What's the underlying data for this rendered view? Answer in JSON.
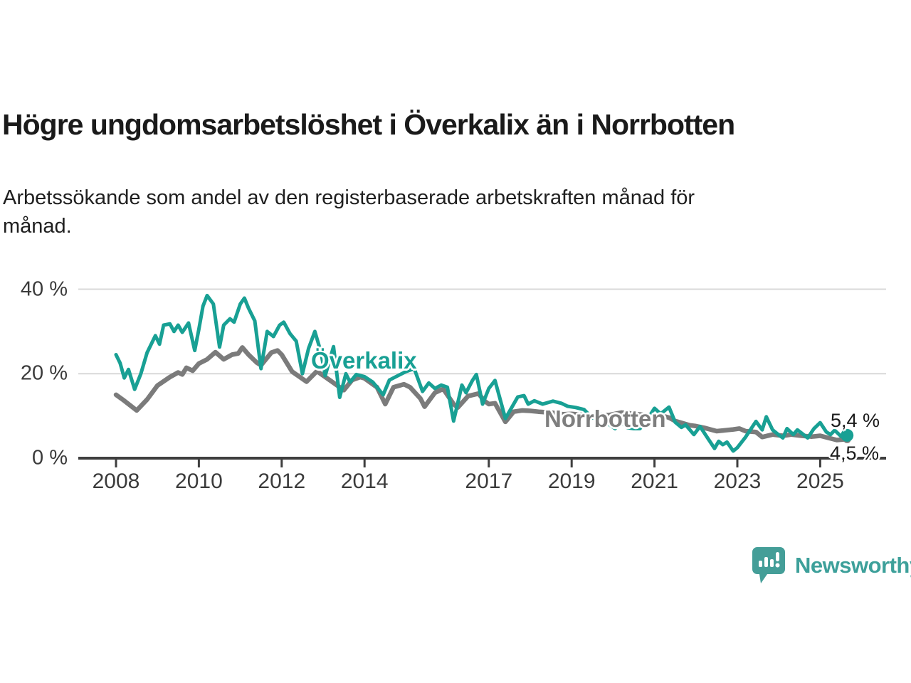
{
  "header": {
    "title": "Högre ungdomsarbetslöshet i Överkalix än i Norrbotten",
    "subtitle": "Arbetssökande som andel av den registerbaserade arbetskraften månad för månad."
  },
  "chart_data": {
    "type": "line",
    "unit": "%",
    "grid": "horizontal-only",
    "ylim": [
      0,
      42
    ],
    "xlim": [
      2007.1,
      2026.6
    ],
    "y_ticks": [
      {
        "value": 40,
        "label": "40 %"
      },
      {
        "value": 20,
        "label": "20 %"
      },
      {
        "value": 0,
        "label": "0 %"
      }
    ],
    "x_ticks": [
      {
        "value": 2008,
        "label": "2008"
      },
      {
        "value": 2010,
        "label": "2010"
      },
      {
        "value": 2012,
        "label": "2012"
      },
      {
        "value": 2014,
        "label": "2014"
      },
      {
        "value": 2017,
        "label": "2017"
      },
      {
        "value": 2019,
        "label": "2019"
      },
      {
        "value": 2021,
        "label": "2021"
      },
      {
        "value": 2023,
        "label": "2023"
      },
      {
        "value": 2025,
        "label": "2025"
      }
    ],
    "series": [
      {
        "name": "Överkalix",
        "color": "#18a094",
        "end_label": "5,4 %",
        "end_value": 5.4,
        "points": [
          [
            2008.0,
            24.5
          ],
          [
            2008.1,
            22.5
          ],
          [
            2008.2,
            19.0
          ],
          [
            2008.3,
            21.0
          ],
          [
            2008.45,
            16.3
          ],
          [
            2008.6,
            20.0
          ],
          [
            2008.75,
            25.0
          ],
          [
            2008.95,
            29.0
          ],
          [
            2009.05,
            27.0
          ],
          [
            2009.15,
            31.5
          ],
          [
            2009.3,
            31.8
          ],
          [
            2009.4,
            30.0
          ],
          [
            2009.5,
            31.5
          ],
          [
            2009.6,
            29.8
          ],
          [
            2009.75,
            32.0
          ],
          [
            2009.9,
            25.5
          ],
          [
            2010.0,
            30.5
          ],
          [
            2010.1,
            36.0
          ],
          [
            2010.2,
            38.5
          ],
          [
            2010.35,
            36.5
          ],
          [
            2010.5,
            26.3
          ],
          [
            2010.6,
            31.5
          ],
          [
            2010.75,
            33.0
          ],
          [
            2010.85,
            32.2
          ],
          [
            2011.0,
            36.5
          ],
          [
            2011.1,
            37.9
          ],
          [
            2011.2,
            35.5
          ],
          [
            2011.35,
            32.5
          ],
          [
            2011.5,
            21.2
          ],
          [
            2011.65,
            30.0
          ],
          [
            2011.8,
            28.8
          ],
          [
            2011.95,
            31.5
          ],
          [
            2012.05,
            32.2
          ],
          [
            2012.2,
            29.5
          ],
          [
            2012.35,
            27.7
          ],
          [
            2012.5,
            20.0
          ],
          [
            2012.65,
            26.0
          ],
          [
            2012.8,
            30.0
          ],
          [
            2012.95,
            25.0
          ],
          [
            2013.05,
            19.5
          ],
          [
            2013.25,
            26.4
          ],
          [
            2013.4,
            14.4
          ],
          [
            2013.55,
            20.0
          ],
          [
            2013.65,
            18.0
          ],
          [
            2013.8,
            19.8
          ],
          [
            2014.0,
            19.3
          ],
          [
            2014.2,
            18.0
          ],
          [
            2014.45,
            15.0
          ],
          [
            2014.6,
            18.5
          ],
          [
            2014.8,
            19.5
          ],
          [
            2015.0,
            20.5
          ],
          [
            2015.2,
            21.2
          ],
          [
            2015.4,
            15.8
          ],
          [
            2015.55,
            17.8
          ],
          [
            2015.7,
            16.5
          ],
          [
            2015.85,
            17.3
          ],
          [
            2016.0,
            16.8
          ],
          [
            2016.15,
            8.8
          ],
          [
            2016.35,
            17.3
          ],
          [
            2016.45,
            15.5
          ],
          [
            2016.6,
            18.3
          ],
          [
            2016.7,
            19.8
          ],
          [
            2016.85,
            12.8
          ],
          [
            2017.0,
            16.5
          ],
          [
            2017.15,
            18.4
          ],
          [
            2017.4,
            9.4
          ],
          [
            2017.7,
            14.5
          ],
          [
            2017.85,
            14.8
          ],
          [
            2017.95,
            12.8
          ],
          [
            2018.1,
            13.6
          ],
          [
            2018.3,
            12.8
          ],
          [
            2018.55,
            13.5
          ],
          [
            2018.75,
            13.0
          ],
          [
            2018.9,
            12.3
          ],
          [
            2019.1,
            12.0
          ],
          [
            2019.3,
            11.5
          ],
          [
            2019.5,
            9.5
          ],
          [
            2019.7,
            10.5
          ],
          [
            2019.9,
            8.0
          ],
          [
            2020.05,
            7.0
          ],
          [
            2020.2,
            8.5
          ],
          [
            2020.35,
            7.2
          ],
          [
            2020.5,
            7.0
          ],
          [
            2020.65,
            7.0
          ],
          [
            2020.8,
            8.8
          ],
          [
            2021.0,
            11.8
          ],
          [
            2021.15,
            10.5
          ],
          [
            2021.35,
            12.1
          ],
          [
            2021.5,
            8.5
          ],
          [
            2021.65,
            7.3
          ],
          [
            2021.75,
            7.9
          ],
          [
            2021.95,
            5.6
          ],
          [
            2022.1,
            7.5
          ],
          [
            2022.3,
            4.5
          ],
          [
            2022.45,
            2.3
          ],
          [
            2022.55,
            4.0
          ],
          [
            2022.65,
            3.2
          ],
          [
            2022.75,
            3.8
          ],
          [
            2022.9,
            1.7
          ],
          [
            2023.0,
            2.5
          ],
          [
            2023.2,
            5.0
          ],
          [
            2023.45,
            8.7
          ],
          [
            2023.6,
            6.7
          ],
          [
            2023.7,
            9.8
          ],
          [
            2023.85,
            6.7
          ],
          [
            2024.0,
            5.5
          ],
          [
            2024.1,
            4.8
          ],
          [
            2024.2,
            7.0
          ],
          [
            2024.35,
            5.6
          ],
          [
            2024.45,
            6.7
          ],
          [
            2024.7,
            4.8
          ],
          [
            2024.85,
            7.0
          ],
          [
            2025.0,
            8.4
          ],
          [
            2025.15,
            6.2
          ],
          [
            2025.25,
            5.6
          ],
          [
            2025.35,
            6.6
          ],
          [
            2025.5,
            5.2
          ],
          [
            2025.65,
            5.4
          ]
        ]
      },
      {
        "name": "Norrbotten",
        "color": "#7b7b7b",
        "end_label": "4,5 %",
        "end_value": 4.5,
        "points": [
          [
            2008.0,
            15.0
          ],
          [
            2008.2,
            13.6
          ],
          [
            2008.5,
            11.3
          ],
          [
            2008.75,
            13.9
          ],
          [
            2009.0,
            17.2
          ],
          [
            2009.3,
            19.2
          ],
          [
            2009.5,
            20.3
          ],
          [
            2009.6,
            19.8
          ],
          [
            2009.7,
            21.4
          ],
          [
            2009.85,
            20.7
          ],
          [
            2010.0,
            22.4
          ],
          [
            2010.2,
            23.4
          ],
          [
            2010.4,
            25.1
          ],
          [
            2010.6,
            23.4
          ],
          [
            2010.8,
            24.5
          ],
          [
            2010.95,
            24.8
          ],
          [
            2011.05,
            26.2
          ],
          [
            2011.2,
            24.5
          ],
          [
            2011.4,
            22.6
          ],
          [
            2011.5,
            22.0
          ],
          [
            2011.75,
            25.0
          ],
          [
            2011.9,
            25.5
          ],
          [
            2012.0,
            24.5
          ],
          [
            2012.25,
            20.5
          ],
          [
            2012.6,
            18.1
          ],
          [
            2012.85,
            20.6
          ],
          [
            2013.2,
            18.2
          ],
          [
            2013.5,
            16.1
          ],
          [
            2013.7,
            18.5
          ],
          [
            2013.9,
            19.2
          ],
          [
            2014.0,
            18.9
          ],
          [
            2014.3,
            16.8
          ],
          [
            2014.5,
            12.8
          ],
          [
            2014.7,
            16.8
          ],
          [
            2014.95,
            17.5
          ],
          [
            2015.1,
            16.8
          ],
          [
            2015.35,
            14.1
          ],
          [
            2015.45,
            12.2
          ],
          [
            2015.7,
            15.5
          ],
          [
            2015.9,
            16.4
          ],
          [
            2016.15,
            12.8
          ],
          [
            2016.25,
            12.0
          ],
          [
            2016.5,
            14.7
          ],
          [
            2016.75,
            15.3
          ],
          [
            2016.9,
            13.5
          ],
          [
            2017.0,
            12.8
          ],
          [
            2017.15,
            13.0
          ],
          [
            2017.4,
            8.6
          ],
          [
            2017.6,
            11.0
          ],
          [
            2017.8,
            11.3
          ],
          [
            2018.0,
            11.2
          ],
          [
            2018.2,
            11.0
          ],
          [
            2018.5,
            10.8
          ],
          [
            2018.8,
            10.4
          ],
          [
            2019.0,
            10.5
          ],
          [
            2019.3,
            10.2
          ],
          [
            2019.6,
            10.0
          ],
          [
            2019.9,
            10.2
          ],
          [
            2020.2,
            10.8
          ],
          [
            2020.5,
            10.5
          ],
          [
            2020.8,
            10.2
          ],
          [
            2021.0,
            10.0
          ],
          [
            2021.2,
            10.0
          ],
          [
            2021.35,
            9.6
          ],
          [
            2021.5,
            8.8
          ],
          [
            2021.85,
            7.8
          ],
          [
            2022.0,
            7.6
          ],
          [
            2022.2,
            7.2
          ],
          [
            2022.5,
            6.4
          ],
          [
            2022.7,
            6.6
          ],
          [
            2022.9,
            6.8
          ],
          [
            2023.05,
            7.0
          ],
          [
            2023.2,
            6.4
          ],
          [
            2023.45,
            6.2
          ],
          [
            2023.6,
            5.0
          ],
          [
            2023.85,
            5.6
          ],
          [
            2024.1,
            5.3
          ],
          [
            2024.3,
            5.6
          ],
          [
            2024.55,
            5.3
          ],
          [
            2024.8,
            5.1
          ],
          [
            2025.0,
            5.3
          ],
          [
            2025.2,
            4.8
          ],
          [
            2025.4,
            4.3
          ],
          [
            2025.65,
            4.5
          ]
        ]
      }
    ],
    "colors": {
      "accent_teal": "#18a094",
      "line_gray": "#7b7b7b",
      "axis": "#3f3f3f",
      "gridline": "#d9d9d9",
      "text_dark": "#1a1a1a",
      "brand_teal": "#3da09a"
    }
  },
  "footer": {
    "brand": "Newsworthy"
  }
}
